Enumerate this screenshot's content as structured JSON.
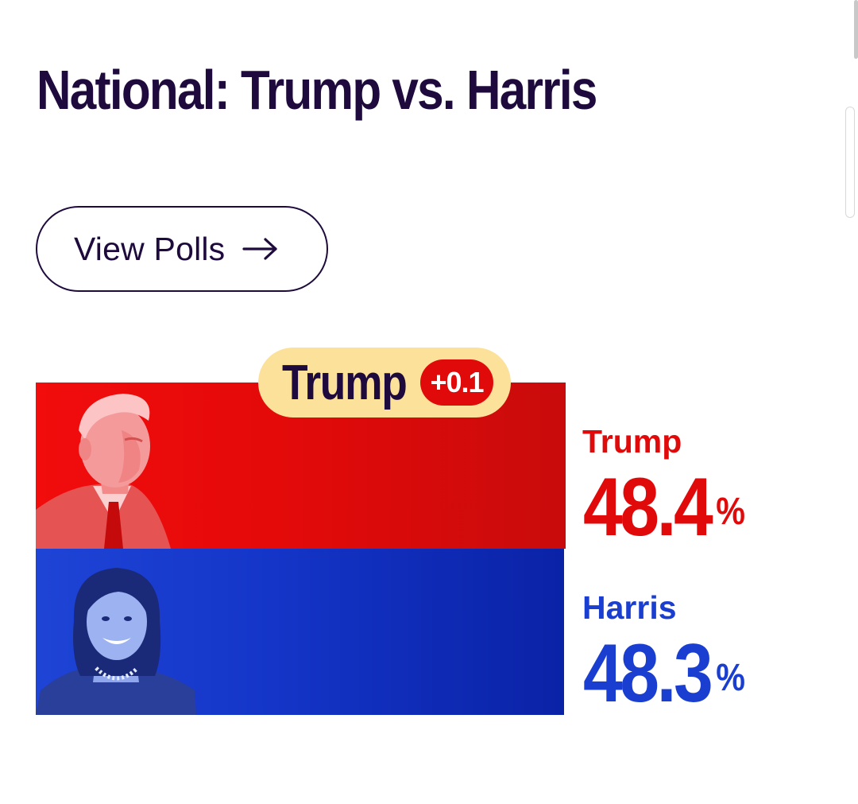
{
  "page": {
    "title": "National: Trump vs. Harris"
  },
  "actions": {
    "view_polls_label": "View Polls",
    "view_polls_icon": "arrow-right-icon"
  },
  "leader": {
    "name": "Trump",
    "margin": "+0.1"
  },
  "candidates": [
    {
      "name": "Trump",
      "value": "48.4",
      "unit": "%",
      "color": "#e10a0a"
    },
    {
      "name": "Harris",
      "value": "48.3",
      "unit": "%",
      "color": "#1a3fd0"
    }
  ],
  "colors": {
    "ink": "#1e0a3c",
    "badge_bg": "#fbe19a",
    "republican": "#e10a0a",
    "democrat": "#1a3fd0"
  }
}
